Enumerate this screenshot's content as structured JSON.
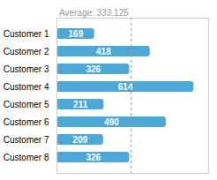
{
  "chart_data": {
    "type": "bar",
    "orientation": "horizontal",
    "categories": [
      "Customer 1",
      "Customer 2",
      "Customer 3",
      "Customer 4",
      "Customer 5",
      "Customer 6",
      "Customer 7",
      "Customer 8"
    ],
    "values": [
      169,
      418,
      326,
      614,
      211,
      490,
      209,
      326
    ],
    "color": "#4DA8DA",
    "xlim": [
      0,
      680
    ],
    "data_labels": true,
    "tick_labels": "y",
    "grid": false,
    "annotations": [
      {
        "text": "Average: 333.125",
        "x": 333.125,
        "color": "#999999",
        "line_style": "dashed"
      }
    ]
  }
}
